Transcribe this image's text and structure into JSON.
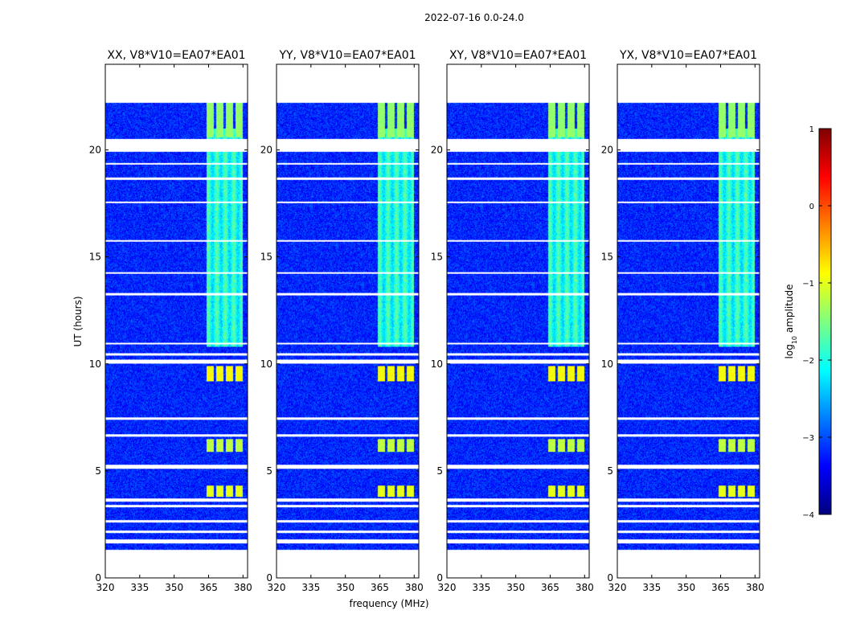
{
  "chart_data": {
    "type": "heatmap",
    "suptitle": "2022-07-16 0.0-24.0",
    "xlabel": "frequency (MHz)",
    "ylabel": "UT (hours)",
    "xlim": [
      320,
      382
    ],
    "ylim": [
      0,
      24
    ],
    "xticks": [
      320,
      335,
      350,
      365,
      380
    ],
    "yticks": [
      0,
      5,
      10,
      15,
      20
    ],
    "colorbar": {
      "label": "log10 amplitude",
      "label_base": "log",
      "label_sub": "10",
      "label_rest": " amplitude",
      "range": [
        -4,
        1
      ],
      "ticks": [
        -4,
        -3,
        -2,
        -1,
        0,
        1
      ],
      "tick_labels": [
        "−4",
        "−3",
        "−2",
        "−1",
        "0",
        "1"
      ],
      "colormap": "jet",
      "colors": [
        "#00007f",
        "#0000ff",
        "#007fff",
        "#00ffff",
        "#7fff7f",
        "#ffff00",
        "#ff7f00",
        "#ff0000",
        "#7f0000"
      ]
    },
    "panels": [
      {
        "title": "XX, V8*V10=EA07*EA01"
      },
      {
        "title": "YY, V8*V10=EA07*EA01"
      },
      {
        "title": "XY, V8*V10=EA07*EA01"
      },
      {
        "title": "YX, V8*V10=EA07*EA01"
      }
    ],
    "data_coverage_hours": [
      1.3,
      22.2
    ],
    "background_log_amplitude": -3.2,
    "rfi_band_mhz": [
      364,
      380
    ],
    "rfi_band_hours": [
      10.8,
      21
    ],
    "rfi_band_log_amplitude": -2.0,
    "bright_bursts": [
      {
        "t_start": 3.8,
        "t_end": 4.3,
        "f_start": 364,
        "f_end": 380,
        "log_amplitude": -1.0
      },
      {
        "t_start": 5.9,
        "t_end": 6.5,
        "f_start": 364,
        "f_end": 380,
        "log_amplitude": -1.2
      },
      {
        "t_start": 9.2,
        "t_end": 9.9,
        "f_start": 364,
        "f_end": 380,
        "log_amplitude": -0.9
      },
      {
        "t_start": 20.6,
        "t_end": 22.2,
        "f_start": 364,
        "f_end": 380,
        "log_amplitude": -1.4
      }
    ],
    "data_gaps_hours": [
      [
        1.6,
        1.8
      ],
      [
        2.1,
        2.2
      ],
      [
        2.6,
        2.7
      ],
      [
        3.3,
        3.4
      ],
      [
        3.55,
        3.7
      ],
      [
        5.1,
        5.3
      ],
      [
        6.6,
        6.7
      ],
      [
        7.4,
        7.5
      ],
      [
        10.0,
        10.2
      ],
      [
        10.4,
        10.5
      ],
      [
        10.9,
        11.0
      ],
      [
        13.2,
        13.3
      ],
      [
        14.2,
        14.3
      ],
      [
        15.7,
        15.8
      ],
      [
        17.5,
        17.6
      ],
      [
        18.6,
        18.7
      ],
      [
        19.3,
        19.4
      ],
      [
        19.9,
        20.5
      ]
    ]
  }
}
